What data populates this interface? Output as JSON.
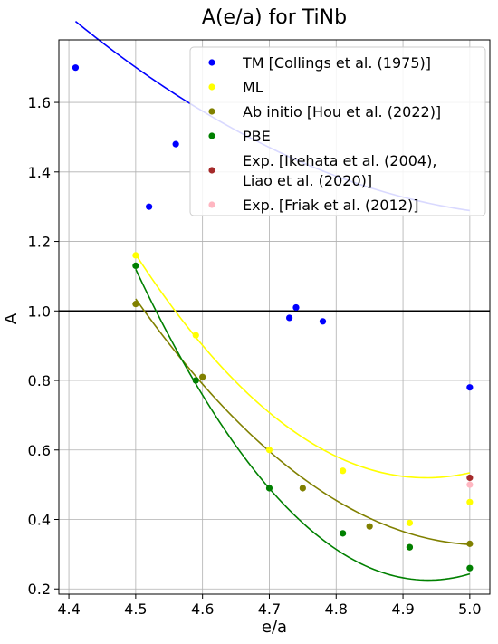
{
  "chart_data": {
    "type": "scatter",
    "title": "A(e/a) for TiNb",
    "xlabel": "e/a",
    "ylabel": "A",
    "xlim": [
      4.385,
      5.03
    ],
    "ylim": [
      0.185,
      1.78
    ],
    "xticks": [
      4.4,
      4.5,
      4.6,
      4.7,
      4.8,
      4.9,
      5.0
    ],
    "xtick_labels": [
      "4.4",
      "4.5",
      "4.6",
      "4.7",
      "4.8",
      "4.9",
      "5.0"
    ],
    "yticks": [
      0.2,
      0.4,
      0.6,
      0.8,
      1.0,
      1.2,
      1.4,
      1.6
    ],
    "ytick_labels": [
      "0.2",
      "0.4",
      "0.6",
      "0.8",
      "1.0",
      "1.2",
      "1.4",
      "1.6"
    ],
    "grid": true,
    "reference_line": {
      "y": 1.0,
      "color": "#000000"
    },
    "legend_position": "top-right",
    "series": [
      {
        "name": "TM [Collings et al. (1975)]",
        "label_lines": [
          "TM [Collings et al. (1975)]"
        ],
        "color": "#0000ff",
        "points": [
          [
            4.41,
            1.7
          ],
          [
            4.52,
            1.3
          ],
          [
            4.56,
            1.48
          ],
          [
            4.73,
            0.98
          ],
          [
            4.74,
            1.01
          ],
          [
            4.78,
            0.97
          ],
          [
            5.0,
            0.78
          ]
        ],
        "fit": {
          "coefficients": [
            1.701,
            -1.3707,
            1.0926
          ],
          "x_range": [
            4.41,
            5.0
          ]
        }
      },
      {
        "name": "ML",
        "label_lines": [
          "ML"
        ],
        "color": "#ffff00",
        "points": [
          [
            4.5,
            1.16
          ],
          [
            4.59,
            0.93
          ],
          [
            4.7,
            0.6
          ],
          [
            4.81,
            0.54
          ],
          [
            4.91,
            0.39
          ],
          [
            5.0,
            0.45
          ]
        ],
        "fit": {
          "coefficients": [
            1.1627,
            -2.9567,
            3.4
          ],
          "x_range": [
            4.5,
            5.0
          ]
        }
      },
      {
        "name": "Ab initio [Hou  et al.  (2022)]",
        "label_lines": [
          "Ab initio [Hou  et al.  (2022)]"
        ],
        "color": "#808000",
        "points": [
          [
            4.5,
            1.02
          ],
          [
            4.6,
            0.81
          ],
          [
            4.75,
            0.49
          ],
          [
            4.85,
            0.38
          ],
          [
            4.91,
            0.32
          ],
          [
            5.0,
            0.33
          ]
        ],
        "fit": {
          "coefficients": [
            1.0346,
            -2.7106,
            2.5946
          ],
          "x_range": [
            4.5,
            5.0
          ]
        }
      },
      {
        "name": "PBE",
        "label_lines": [
          "PBE"
        ],
        "color": "#008000",
        "points": [
          [
            4.5,
            1.13
          ],
          [
            4.59,
            0.8
          ],
          [
            4.7,
            0.49
          ],
          [
            4.81,
            0.36
          ],
          [
            4.91,
            0.32
          ],
          [
            5.0,
            0.26
          ]
        ],
        "fit": {
          "coefficients": [
            1.12,
            -4.0867,
            4.6667
          ],
          "x_range": [
            4.5,
            5.0
          ]
        }
      },
      {
        "name": "Exp. [Ikehata et al. (2004), Liao et al. (2020)]",
        "label_lines": [
          "Exp. [Ikehata et al. (2004),",
          "Liao et al. (2020)]"
        ],
        "color": "#a52a2a",
        "points": [
          [
            5.0,
            0.52
          ]
        ]
      },
      {
        "name": "Exp. [Friak et al. (2012)]",
        "label_lines": [
          "Exp. [Friak et al. (2012)]"
        ],
        "color": "#ffb6c1",
        "points": [
          [
            5.0,
            0.5
          ]
        ]
      }
    ]
  }
}
